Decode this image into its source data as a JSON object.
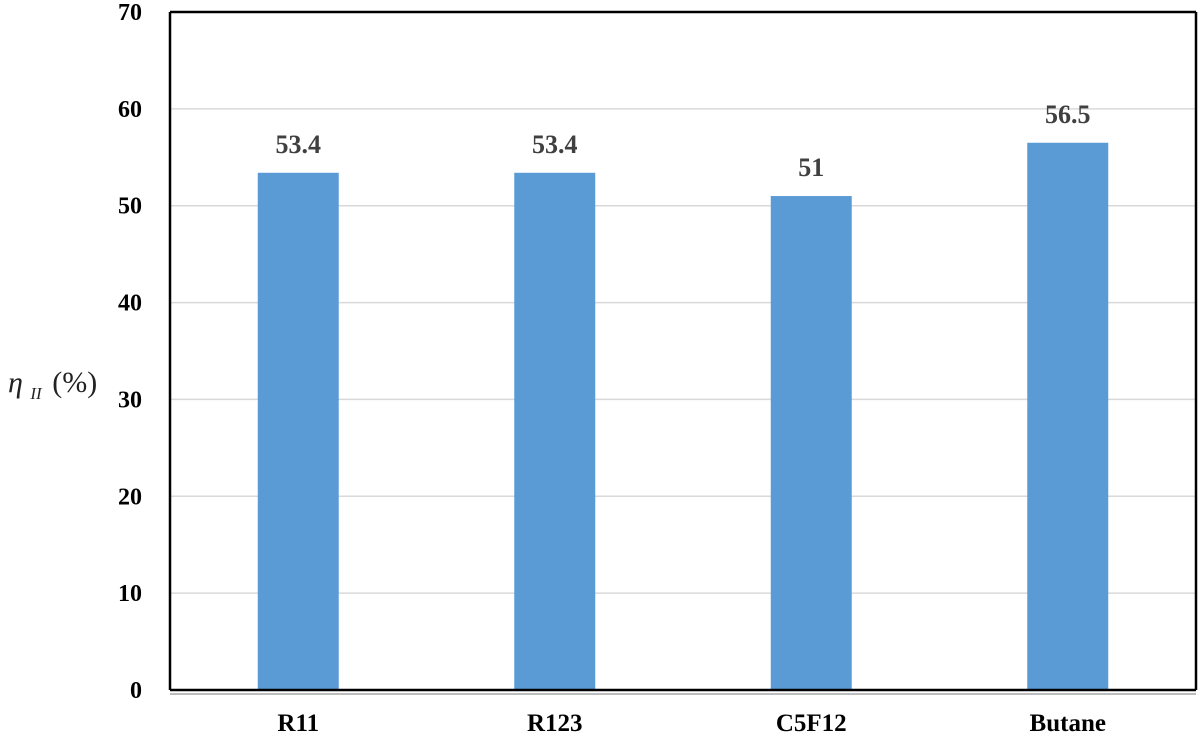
{
  "chart_data": {
    "type": "bar",
    "title": "",
    "xlabel": "",
    "ylabel": {
      "symbol": "η",
      "subscript": "II",
      "unit": "(%)"
    },
    "categories": [
      "R11",
      "R123",
      "C5F12",
      "Butane"
    ],
    "values": [
      53.4,
      53.4,
      51,
      56.5
    ],
    "data_labels": [
      "53.4",
      "53.4",
      "51",
      "56.5"
    ],
    "ylim": [
      0,
      70
    ],
    "yticks": [
      0,
      10,
      20,
      30,
      40,
      50,
      60,
      70
    ],
    "grid": true,
    "legend": "none",
    "bar_color": "#5b9bd5",
    "grid_color": "#d9d9d9",
    "axis_color": "#000000"
  }
}
